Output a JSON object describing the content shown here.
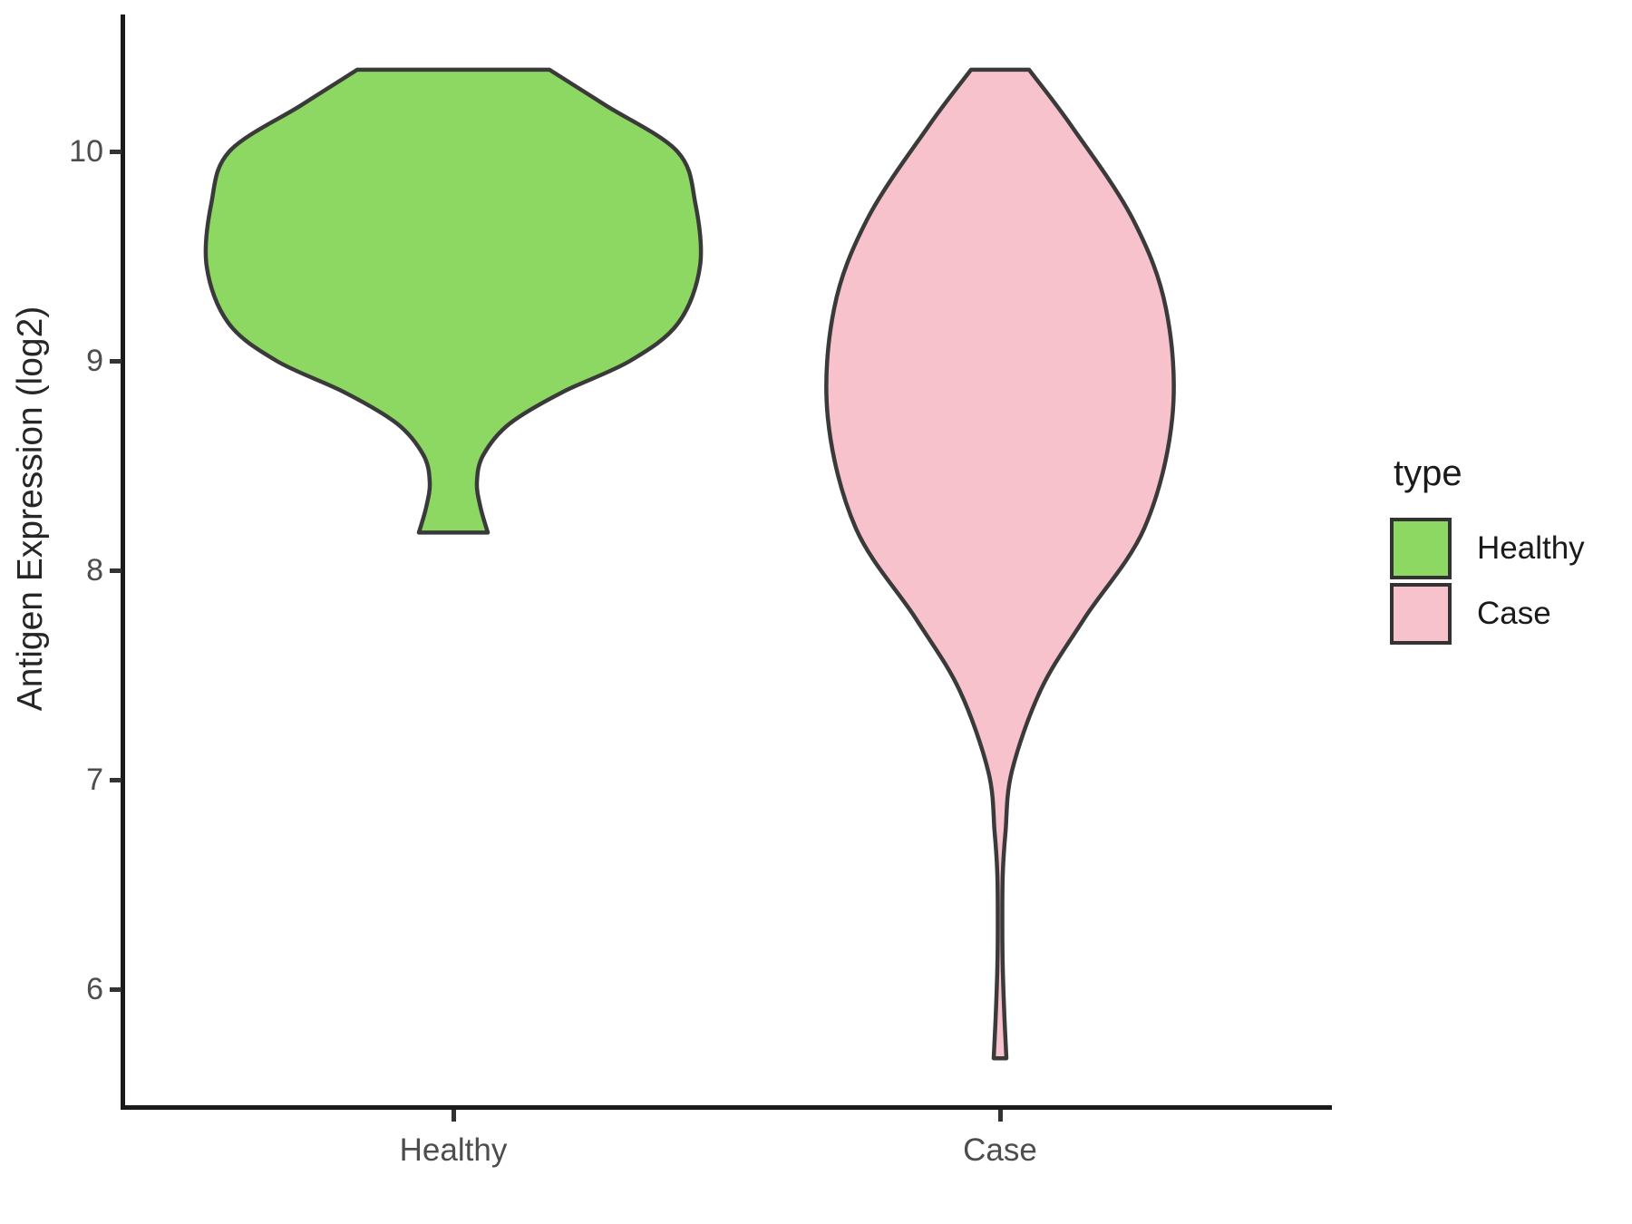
{
  "chart_data": {
    "type": "violin",
    "title": "",
    "xlabel": "",
    "ylabel": "Antigen Expression (log2)",
    "categories": [
      "Healthy",
      "Case"
    ],
    "y_ticks": [
      10,
      9,
      8,
      7,
      6
    ],
    "y_axis_range_shown": [
      5.4,
      10.65
    ],
    "grid": "none",
    "background": "#FFFFFF",
    "legend": {
      "title": "type",
      "position": "right",
      "entries": [
        {
          "label": "Healthy",
          "fill": "#8DD862",
          "border": "#333333"
        },
        {
          "label": "Case",
          "fill": "#F8C2CD",
          "border": "#333333"
        }
      ]
    },
    "violins": [
      {
        "name": "Healthy",
        "fill": "#8DD862",
        "outline": "#3A3A3A",
        "value_min": 8.18,
        "value_max": 10.39,
        "widest_at_value": 9.45,
        "profile": [
          [
            10.39,
            106
          ],
          [
            10.22,
            168
          ],
          [
            10.0,
            247
          ],
          [
            9.75,
            267
          ],
          [
            9.45,
            272
          ],
          [
            9.18,
            248
          ],
          [
            9.0,
            195
          ],
          [
            8.85,
            120
          ],
          [
            8.7,
            62
          ],
          [
            8.55,
            33
          ],
          [
            8.42,
            26
          ],
          [
            8.3,
            30
          ],
          [
            8.18,
            38
          ]
        ]
      },
      {
        "name": "Case",
        "fill": "#F8C2CD",
        "outline": "#3A3A3A",
        "value_min": 5.67,
        "value_max": 10.39,
        "widest_at_value": 8.73,
        "profile": [
          [
            10.39,
            32
          ],
          [
            10.12,
            79
          ],
          [
            9.68,
            146
          ],
          [
            9.25,
            183
          ],
          [
            8.73,
            190
          ],
          [
            8.2,
            159
          ],
          [
            7.77,
            93
          ],
          [
            7.43,
            45
          ],
          [
            7.04,
            13
          ],
          [
            6.75,
            6
          ],
          [
            6.55,
            3
          ],
          [
            6.3,
            2.5
          ],
          [
            6.1,
            3
          ],
          [
            5.85,
            5
          ],
          [
            5.67,
            7
          ]
        ]
      }
    ]
  }
}
